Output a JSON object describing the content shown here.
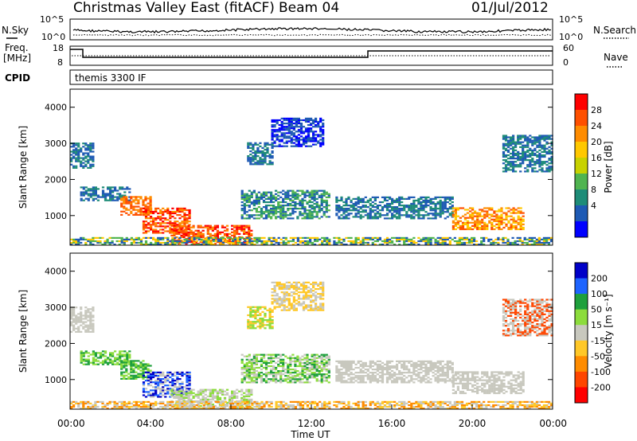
{
  "header": {
    "station": "Christmas Valley East (fitACF)",
    "beam": "Beam 04",
    "date": "01/Jul/2012"
  },
  "top_panels": {
    "nsky_label": "N.Sky",
    "nsky_ticks": [
      "10^5",
      "10^0"
    ],
    "nsearch_label": "N.Search",
    "nsearch_ticks": [
      "10^5",
      "10^0"
    ],
    "freq_label_1": "Freq.",
    "freq_label_2": "[MHz]",
    "freq_ticks": [
      "18",
      "8"
    ],
    "nave_label": "Nave",
    "nave_ticks": [
      "60",
      "0"
    ],
    "cpid_label": "CPID",
    "cpid_value": "themis 3300 IF"
  },
  "chart_data": [
    {
      "type": "heatmap",
      "name": "power",
      "ylabel": "Slant Range [km]",
      "xlabel": "",
      "xlim_hours": [
        0,
        24
      ],
      "ylim_km": [
        180,
        4500
      ],
      "y_ticks": [
        "4000",
        "3000",
        "2000",
        "1000"
      ],
      "colorbar_label": "Power [dB]",
      "colorbar_ticks": [
        "28",
        "24",
        "20",
        "16",
        "12",
        "8",
        "4"
      ],
      "colorbar_colors": [
        "#ff0000",
        "#ff5000",
        "#ff8c00",
        "#ffc800",
        "#c8d200",
        "#50b450",
        "#1e8c78",
        "#1e5ab4",
        "#0000ff"
      ],
      "data_gap_hours": [
        12.95,
        13.05
      ]
    },
    {
      "type": "heatmap",
      "name": "velocity",
      "ylabel": "Slant Range [km]",
      "xlabel": "Time UT",
      "xlim_hours": [
        0,
        24
      ],
      "ylim_km": [
        180,
        4500
      ],
      "y_ticks": [
        "4000",
        "3000",
        "2000",
        "1000"
      ],
      "x_ticks": [
        "00:00",
        "04:00",
        "08:00",
        "12:00",
        "16:00",
        "20:00",
        "00:00"
      ],
      "colorbar_label": "Velocity [m s⁻¹]",
      "colorbar_ticks": [
        "200",
        "100",
        "50",
        "15",
        "-15",
        "-50",
        "-100",
        "-200"
      ],
      "colorbar_colors": [
        "#0000c8",
        "#1e64ff",
        "#1ea03c",
        "#8cdc3c",
        "#c8c8be",
        "#ffc828",
        "#ff8c00",
        "#ff4600",
        "#ff0000"
      ],
      "data_gap_hours": [
        12.95,
        13.05
      ]
    }
  ]
}
